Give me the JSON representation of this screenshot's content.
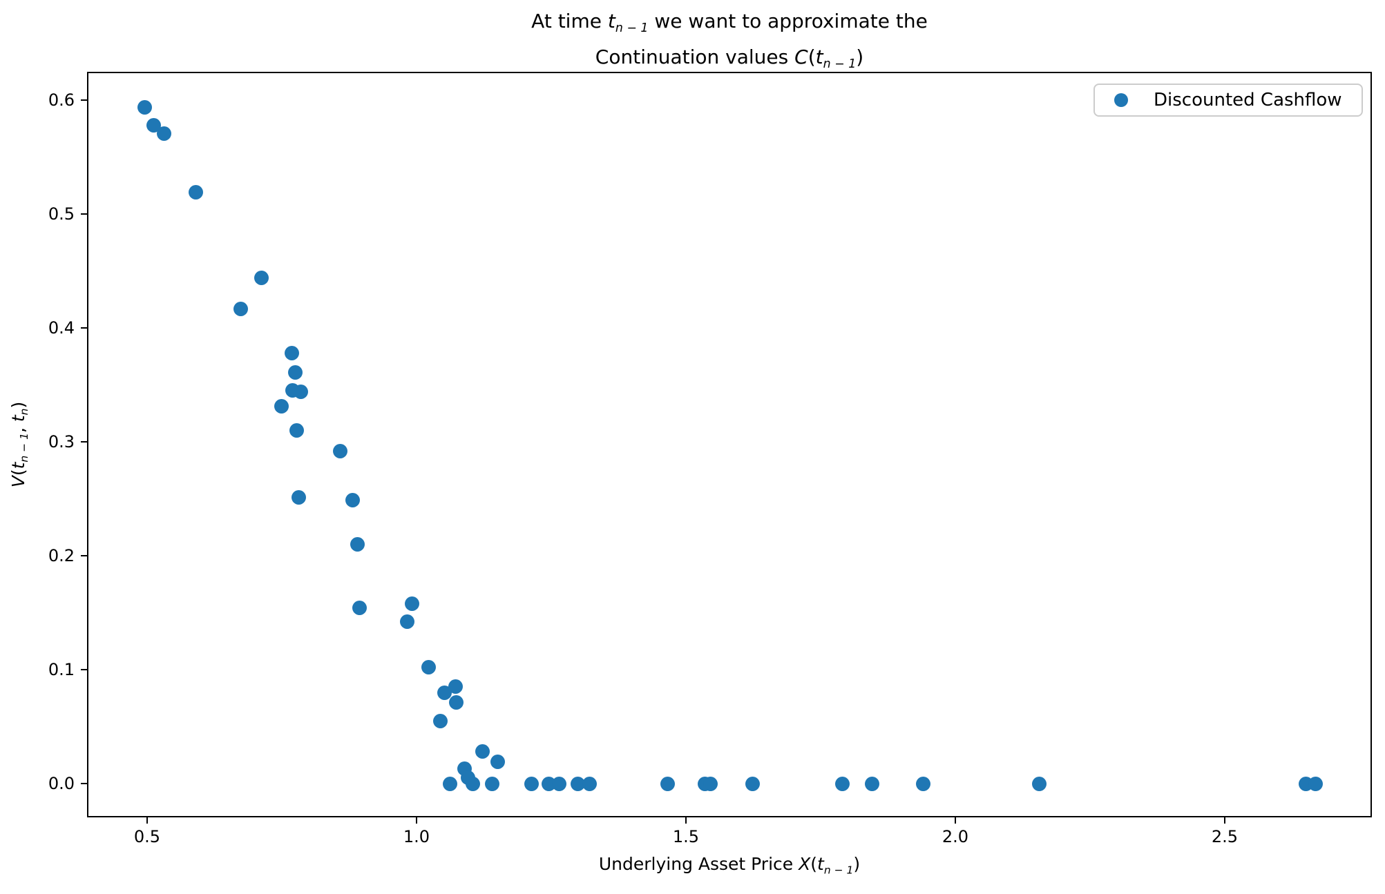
{
  "figure": {
    "background": "#ffffff",
    "text_color": "#000000"
  },
  "title": {
    "plain": "At time tₙ₋₁ we want to approximate the Continuation values C(tₙ₋₁)",
    "line1_segments": [
      {
        "t": "At time ",
        "s": "n"
      },
      {
        "t": "t",
        "s": "i"
      },
      {
        "t": "n − 1",
        "s": "sub"
      },
      {
        "t": " we want to approximate the",
        "s": "n"
      }
    ],
    "line2_segments": [
      {
        "t": "Continuation values ",
        "s": "n"
      },
      {
        "t": "C",
        "s": "i"
      },
      {
        "t": "(",
        "s": "n"
      },
      {
        "t": "t",
        "s": "i"
      },
      {
        "t": "n − 1",
        "s": "sub"
      },
      {
        "t": ")",
        "s": "n"
      }
    ]
  },
  "axes": {
    "xlabel_plain": "Underlying Asset Price X(tₙ₋₁)",
    "xlabel_segments": [
      {
        "t": "Underlying Asset Price ",
        "s": "n"
      },
      {
        "t": "X",
        "s": "i"
      },
      {
        "t": "(",
        "s": "n"
      },
      {
        "t": "t",
        "s": "i"
      },
      {
        "t": "n − 1",
        "s": "sub"
      },
      {
        "t": ")",
        "s": "n"
      }
    ],
    "ylabel_plain": "V(tₙ₋₁, tₙ)",
    "ylabel_segments": [
      {
        "t": "V",
        "s": "i"
      },
      {
        "t": "(",
        "s": "n"
      },
      {
        "t": "t",
        "s": "i"
      },
      {
        "t": "n − 1",
        "s": "sub"
      },
      {
        "t": ", ",
        "s": "n"
      },
      {
        "t": "t",
        "s": "i"
      },
      {
        "t": "n",
        "s": "sub"
      },
      {
        "t": ")",
        "s": "n"
      }
    ]
  },
  "legend": {
    "position": "upper right",
    "entries": [
      {
        "label": "Discounted Cashflow",
        "marker": "circle",
        "marker_color": "#1f77b4"
      }
    ]
  },
  "chart_data": {
    "type": "scatter",
    "title": "At time t_{n-1} we want to approximate the\nContinuation values C(t_{n-1})",
    "xlabel": "Underlying Asset Price X(t_{n-1})",
    "ylabel": "V(t_{n-1}, t_n)",
    "xlim": [
      0.3885,
      2.7731
    ],
    "ylim": [
      -0.0297,
      0.625
    ],
    "x_ticks": [
      0.5,
      1.0,
      1.5,
      2.0,
      2.5
    ],
    "x_tick_labels": [
      "0.5",
      "1.0",
      "1.5",
      "2.0",
      "2.5"
    ],
    "y_ticks": [
      0.0,
      0.1,
      0.2,
      0.3,
      0.4,
      0.5,
      0.6
    ],
    "y_tick_labels": [
      "0.0",
      "0.1",
      "0.2",
      "0.3",
      "0.4",
      "0.5",
      "0.6"
    ],
    "grid": false,
    "marker_color": "#1f77b4",
    "series": [
      {
        "name": "Discounted Cashflow",
        "color": "#1f77b4",
        "points": [
          [
            0.496,
            0.594
          ],
          [
            0.512,
            0.578
          ],
          [
            0.531,
            0.571
          ],
          [
            0.591,
            0.519
          ],
          [
            0.674,
            0.417
          ],
          [
            0.712,
            0.444
          ],
          [
            0.75,
            0.331
          ],
          [
            0.769,
            0.378
          ],
          [
            0.77,
            0.345
          ],
          [
            0.775,
            0.361
          ],
          [
            0.778,
            0.31
          ],
          [
            0.782,
            0.251
          ],
          [
            0.785,
            0.344
          ],
          [
            0.858,
            0.292
          ],
          [
            0.881,
            0.249
          ],
          [
            0.891,
            0.21
          ],
          [
            0.894,
            0.154
          ],
          [
            0.983,
            0.142
          ],
          [
            0.992,
            0.158
          ],
          [
            1.023,
            0.102
          ],
          [
            1.044,
            0.055
          ],
          [
            1.052,
            0.08
          ],
          [
            1.073,
            0.085
          ],
          [
            1.074,
            0.071
          ],
          [
            1.062,
            0.0
          ],
          [
            1.089,
            0.013
          ],
          [
            1.096,
            0.005
          ],
          [
            1.104,
            0.0
          ],
          [
            1.122,
            0.028
          ],
          [
            1.141,
            0.0
          ],
          [
            1.151,
            0.019
          ],
          [
            1.214,
            0.0
          ],
          [
            1.246,
            0.0
          ],
          [
            1.265,
            0.0
          ],
          [
            1.299,
            0.0
          ],
          [
            1.321,
            0.0
          ],
          [
            1.466,
            0.0
          ],
          [
            1.535,
            0.0
          ],
          [
            1.545,
            0.0
          ],
          [
            1.624,
            0.0
          ],
          [
            1.791,
            0.0
          ],
          [
            1.845,
            0.0
          ],
          [
            1.941,
            0.0
          ],
          [
            2.156,
            0.0
          ],
          [
            2.651,
            0.0
          ],
          [
            2.669,
            0.0
          ]
        ]
      }
    ]
  }
}
